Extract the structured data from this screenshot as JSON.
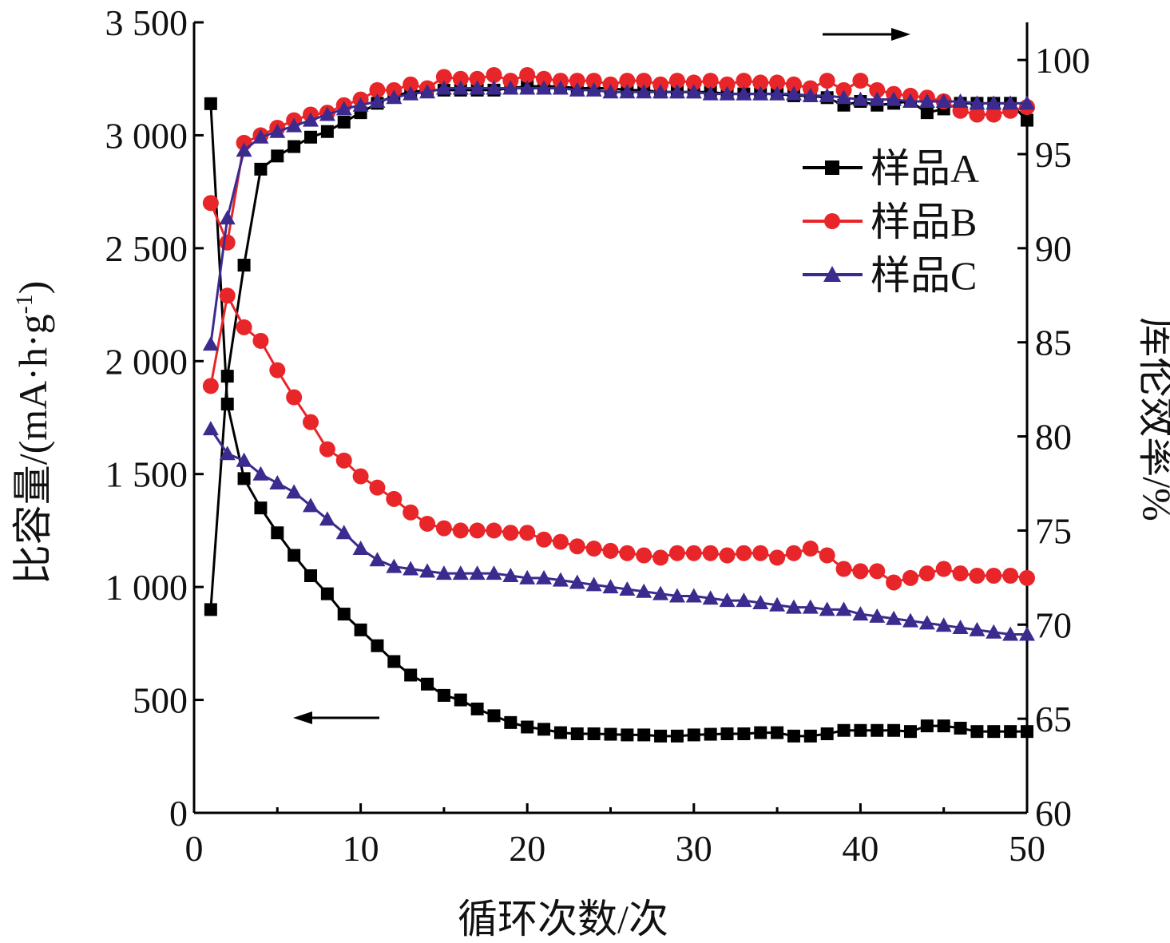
{
  "chart_data": {
    "type": "line",
    "xlabel": "循环次数/次",
    "ylabel_left": "比容量/(mA·h·g",
    "ylabel_left_sup": "-1",
    "ylabel_left_close": ")",
    "ylabel_right": "库伦效率/%",
    "xlim": [
      0,
      50
    ],
    "ylim_left": [
      0,
      3500
    ],
    "ylim_right": [
      60,
      102
    ],
    "x_ticks": [
      0,
      10,
      20,
      30,
      40,
      50
    ],
    "x_tick_labels": [
      "0",
      "10",
      "20",
      "30",
      "40",
      "50"
    ],
    "y_left_ticks": [
      0,
      500,
      1000,
      1500,
      2000,
      2500,
      3000,
      3500
    ],
    "y_left_tick_labels": [
      "0",
      "500",
      "1 000",
      "1 500",
      "2 000",
      "2 500",
      "3 000",
      "3 500"
    ],
    "y_right_ticks": [
      60,
      65,
      70,
      75,
      80,
      85,
      90,
      95,
      100
    ],
    "y_right_tick_labels": [
      "60",
      "65",
      "70",
      "75",
      "80",
      "85",
      "90",
      "95",
      "100"
    ],
    "legend_position": "top-right",
    "arrows": [
      {
        "direction": "right",
        "meaning": "right axis"
      },
      {
        "direction": "left",
        "meaning": "left axis"
      }
    ],
    "series": [
      {
        "name": "样品A",
        "color": "#000000",
        "marker": "square",
        "axis": "left",
        "x": [
          1,
          2,
          3,
          4,
          5,
          6,
          7,
          8,
          9,
          10,
          11,
          12,
          13,
          14,
          15,
          16,
          17,
          18,
          19,
          20,
          21,
          22,
          23,
          24,
          25,
          26,
          27,
          28,
          29,
          30,
          31,
          32,
          33,
          34,
          35,
          36,
          37,
          38,
          39,
          40,
          41,
          42,
          43,
          44,
          45,
          46,
          47,
          48,
          49,
          50
        ],
        "values": [
          3140,
          1810,
          1480,
          1350,
          1240,
          1140,
          1050,
          970,
          880,
          810,
          740,
          670,
          610,
          570,
          520,
          500,
          460,
          430,
          400,
          380,
          370,
          355,
          350,
          350,
          348,
          345,
          345,
          340,
          340,
          345,
          348,
          350,
          350,
          355,
          355,
          340,
          340,
          350,
          365,
          365,
          365,
          365,
          360,
          385,
          385,
          375,
          360,
          360,
          360,
          360
        ]
      },
      {
        "name": "样品A",
        "color": "#000000",
        "marker": "square",
        "axis": "right",
        "x": [
          1,
          2,
          3,
          4,
          5,
          6,
          7,
          8,
          9,
          10,
          11,
          12,
          13,
          14,
          15,
          16,
          17,
          18,
          19,
          20,
          21,
          22,
          23,
          24,
          25,
          26,
          27,
          28,
          29,
          30,
          31,
          32,
          33,
          34,
          35,
          36,
          37,
          38,
          39,
          40,
          41,
          42,
          43,
          44,
          45,
          46,
          47,
          48,
          49,
          50
        ],
        "values": [
          70.8,
          83.2,
          89.1,
          94.2,
          94.9,
          95.4,
          95.9,
          96.2,
          96.7,
          97.2,
          97.7,
          98.1,
          98.3,
          98.4,
          98.4,
          98.4,
          98.4,
          98.4,
          98.5,
          98.6,
          98.6,
          98.6,
          98.5,
          98.5,
          98.5,
          98.4,
          98.4,
          98.3,
          98.3,
          98.3,
          98.3,
          98.2,
          98.2,
          98.2,
          98.2,
          98.1,
          98.1,
          98.0,
          97.6,
          97.8,
          97.6,
          97.7,
          97.8,
          97.2,
          97.4,
          97.7,
          97.7,
          97.7,
          97.7,
          96.8
        ]
      },
      {
        "name": "样品B",
        "color": "#e8262a",
        "marker": "circle",
        "axis": "left",
        "x": [
          1,
          2,
          3,
          4,
          5,
          6,
          7,
          8,
          9,
          10,
          11,
          12,
          13,
          14,
          15,
          16,
          17,
          18,
          19,
          20,
          21,
          22,
          23,
          24,
          25,
          26,
          27,
          28,
          29,
          30,
          31,
          32,
          33,
          34,
          35,
          36,
          37,
          38,
          39,
          40,
          41,
          42,
          43,
          44,
          45,
          46,
          47,
          48,
          49,
          50
        ],
        "values": [
          1890,
          2290,
          2150,
          2090,
          1960,
          1840,
          1730,
          1610,
          1560,
          1490,
          1440,
          1390,
          1330,
          1280,
          1260,
          1250,
          1250,
          1250,
          1240,
          1240,
          1210,
          1200,
          1180,
          1170,
          1160,
          1150,
          1140,
          1130,
          1150,
          1150,
          1150,
          1140,
          1150,
          1150,
          1130,
          1150,
          1170,
          1140,
          1080,
          1070,
          1070,
          1020,
          1040,
          1060,
          1080,
          1060,
          1050,
          1050,
          1050,
          1040
        ]
      },
      {
        "name": "样品B",
        "color": "#e8262a",
        "marker": "circle",
        "axis": "right",
        "x": [
          1,
          2,
          3,
          4,
          5,
          6,
          7,
          8,
          9,
          10,
          11,
          12,
          13,
          14,
          15,
          16,
          17,
          18,
          19,
          20,
          21,
          22,
          23,
          24,
          25,
          26,
          27,
          28,
          29,
          30,
          31,
          32,
          33,
          34,
          35,
          36,
          37,
          38,
          39,
          40,
          41,
          42,
          43,
          44,
          45,
          46,
          47,
          48,
          49,
          50
        ],
        "values": [
          92.4,
          90.3,
          95.6,
          96.0,
          96.4,
          96.8,
          97.1,
          97.2,
          97.6,
          97.9,
          98.4,
          98.4,
          98.7,
          98.5,
          99.1,
          99.0,
          99.0,
          99.2,
          98.9,
          99.2,
          99.0,
          98.9,
          98.9,
          98.9,
          98.7,
          98.9,
          98.9,
          98.7,
          98.9,
          98.8,
          98.9,
          98.7,
          98.9,
          98.8,
          98.8,
          98.7,
          98.5,
          98.9,
          98.4,
          98.9,
          98.4,
          98.2,
          98.1,
          98.0,
          97.8,
          97.3,
          97.1,
          97.1,
          97.3,
          97.5
        ]
      },
      {
        "name": "样品C",
        "color": "#3b2b8f",
        "marker": "triangle",
        "axis": "left",
        "x": [
          1,
          2,
          3,
          4,
          5,
          6,
          7,
          8,
          9,
          10,
          11,
          12,
          13,
          14,
          15,
          16,
          17,
          18,
          19,
          20,
          21,
          22,
          23,
          24,
          25,
          26,
          27,
          28,
          29,
          30,
          31,
          32,
          33,
          34,
          35,
          36,
          37,
          38,
          39,
          40,
          41,
          42,
          43,
          44,
          45,
          46,
          47,
          48,
          49,
          50
        ],
        "values": [
          1700,
          1590,
          1560,
          1500,
          1460,
          1420,
          1360,
          1300,
          1240,
          1170,
          1120,
          1090,
          1080,
          1070,
          1060,
          1060,
          1060,
          1060,
          1050,
          1040,
          1040,
          1030,
          1020,
          1010,
          1000,
          990,
          980,
          970,
          960,
          960,
          950,
          940,
          940,
          930,
          920,
          910,
          910,
          900,
          900,
          880,
          870,
          860,
          850,
          840,
          830,
          820,
          810,
          800,
          790,
          790
        ]
      },
      {
        "name": "样品C",
        "color": "#3b2b8f",
        "marker": "triangle",
        "axis": "right",
        "x": [
          1,
          2,
          3,
          4,
          5,
          6,
          7,
          8,
          9,
          10,
          11,
          12,
          13,
          14,
          15,
          16,
          17,
          18,
          19,
          20,
          21,
          22,
          23,
          24,
          25,
          26,
          27,
          28,
          29,
          30,
          31,
          32,
          33,
          34,
          35,
          36,
          37,
          38,
          39,
          40,
          41,
          42,
          43,
          44,
          45,
          46,
          47,
          48,
          49,
          50
        ],
        "values": [
          84.9,
          91.6,
          95.2,
          95.9,
          96.2,
          96.5,
          96.8,
          97.1,
          97.4,
          97.6,
          97.8,
          98.0,
          98.2,
          98.3,
          98.5,
          98.5,
          98.5,
          98.5,
          98.5,
          98.5,
          98.5,
          98.5,
          98.4,
          98.4,
          98.3,
          98.3,
          98.3,
          98.3,
          98.3,
          98.3,
          98.2,
          98.2,
          98.2,
          98.2,
          98.2,
          98.2,
          98.1,
          98.1,
          98.0,
          97.9,
          97.9,
          97.9,
          97.8,
          97.8,
          97.8,
          97.8,
          97.7,
          97.7,
          97.7,
          97.7
        ]
      }
    ]
  }
}
